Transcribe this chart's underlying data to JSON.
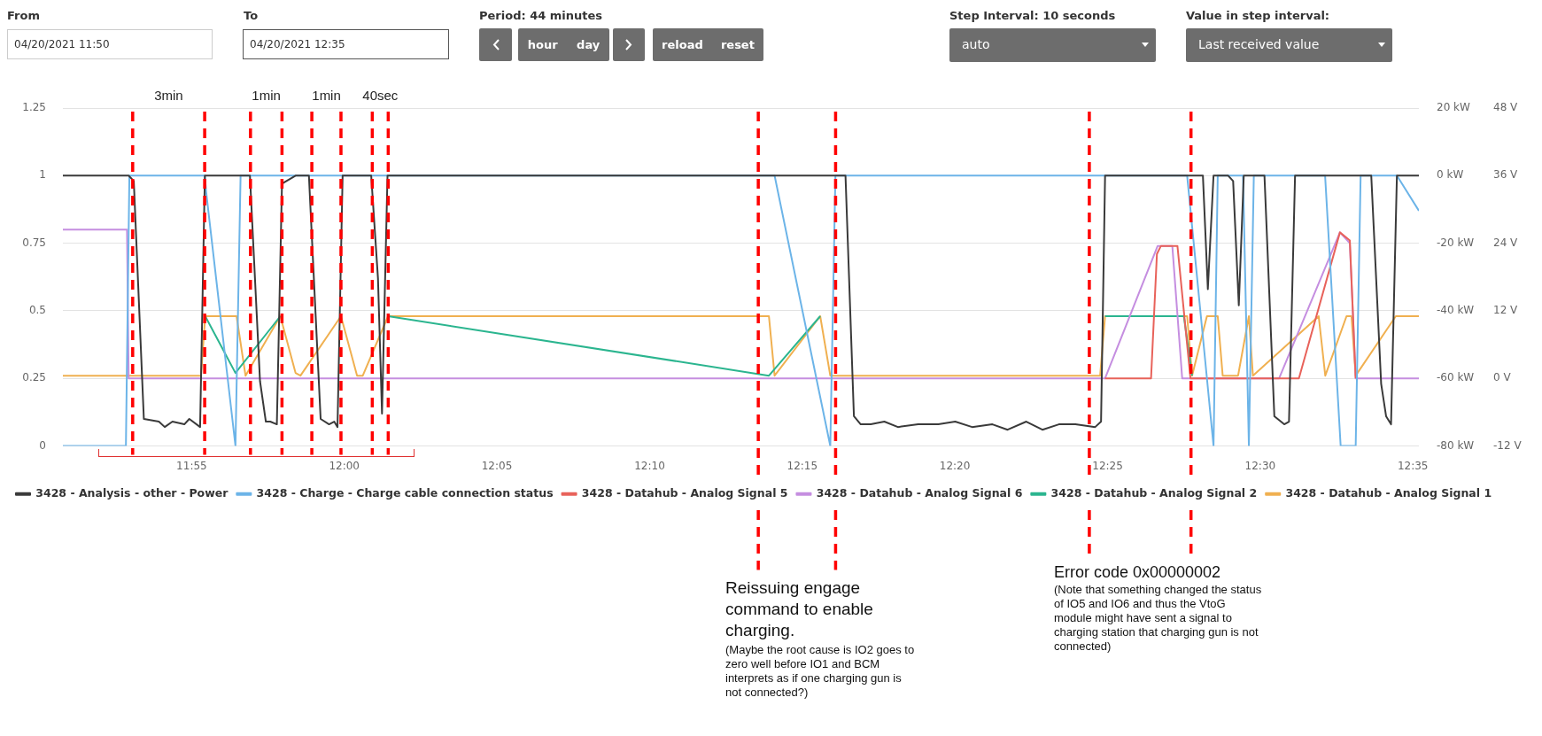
{
  "chart_data": {
    "type": "line",
    "xlim": [
      11.8464,
      12.5866
    ],
    "xticks": [
      {
        "value": 11.9167,
        "label": "11:55"
      },
      {
        "value": 12.0,
        "label": "12:00"
      },
      {
        "value": 12.0833,
        "label": "12:05"
      },
      {
        "value": 12.1667,
        "label": "12:10"
      },
      {
        "value": 12.25,
        "label": "12:15"
      },
      {
        "value": 12.3333,
        "label": "12:20"
      },
      {
        "value": 12.4167,
        "label": "12:25"
      },
      {
        "value": 12.5,
        "label": "12:30"
      },
      {
        "value": 12.5833,
        "label": "12:35"
      }
    ],
    "ylim": [
      0,
      1.25
    ],
    "yticks": [
      0,
      0.25,
      0.5,
      0.75,
      1,
      1.25
    ],
    "y2lim": [
      -80,
      20
    ],
    "y2ticks": [
      {
        "value": -80,
        "label": "-80 kW"
      },
      {
        "value": -60,
        "label": "-60 kW"
      },
      {
        "value": -40,
        "label": "-40 kW"
      },
      {
        "value": -20,
        "label": "-20 kW"
      },
      {
        "value": 0,
        "label": "0 kW"
      },
      {
        "value": 20,
        "label": "20 kW"
      }
    ],
    "y3lim": [
      -12,
      48
    ],
    "y3ticks": [
      {
        "value": -12,
        "label": "-12 V"
      },
      {
        "value": 0,
        "label": "0 V"
      },
      {
        "value": 12,
        "label": "12 V"
      },
      {
        "value": 24,
        "label": "24 V"
      },
      {
        "value": 36,
        "label": "36 V"
      },
      {
        "value": 48,
        "label": "48 V"
      }
    ],
    "grid": "y",
    "legend": "bottom left",
    "marker": "none",
    "line_style": "solid",
    "series": [
      {
        "name": "3428 - Analysis - other - Power",
        "color": "#3a3a3a",
        "x": [
          11.8464,
          11.8823,
          11.8851,
          11.8906,
          11.8988,
          11.902,
          11.9062,
          11.9127,
          11.9154,
          11.9213,
          11.9239,
          11.9412,
          11.9485,
          11.954,
          11.9572,
          11.9596,
          11.9632,
          11.966,
          11.9734,
          11.9761,
          11.9807,
          11.9871,
          11.9917,
          11.9945,
          11.9963,
          11.9991,
          12.0147,
          12.0184,
          12.0206,
          12.0236,
          12.2736,
          12.2782,
          12.2819,
          12.2874,
          12.2948,
          12.3022,
          12.3133,
          12.3243,
          12.3335,
          12.3427,
          12.3538,
          12.3621,
          12.3723,
          12.3811,
          12.3901,
          12.3991,
          12.4099,
          12.4131,
          12.4153,
          12.4619,
          12.4687,
          12.4714,
          12.4745,
          12.4825,
          12.4852,
          12.4883,
          12.491,
          12.5023,
          12.5077,
          12.5131,
          12.5157,
          12.519,
          12.5606,
          12.566,
          12.5687,
          12.5714,
          12.5746,
          12.5866
        ],
        "values": [
          1,
          1,
          0.98,
          0.1,
          0.09,
          0.07,
          0.09,
          0.08,
          0.1,
          0.07,
          1,
          1,
          1,
          0.24,
          0.09,
          0.09,
          0.08,
          0.97,
          1,
          1,
          1,
          0.1,
          0.08,
          0.09,
          0.07,
          1,
          1,
          0.62,
          0.12,
          1,
          1,
          0.11,
          0.08,
          0.08,
          0.09,
          0.07,
          0.08,
          0.08,
          0.09,
          0.07,
          0.08,
          0.06,
          0.09,
          0.06,
          0.08,
          0.08,
          0.07,
          0.09,
          1,
          1,
          1,
          0.58,
          1,
          1,
          0.98,
          0.52,
          1,
          1,
          0.11,
          0.08,
          0.09,
          1,
          1,
          0.23,
          0.11,
          0.08,
          1,
          1
        ]
      },
      {
        "name": "3428 - Charge - Charge cable connection status",
        "color": "#6cb4e8",
        "x": [
          11.8464,
          11.8808,
          11.8827,
          11.9239,
          11.9246,
          11.9406,
          11.9434,
          12.2349,
          12.2653,
          12.2681,
          12.4601,
          12.4745,
          12.4768,
          12.4906,
          12.4938,
          12.4965,
          12.5354,
          12.5439,
          12.5521,
          12.5548,
          12.5746,
          12.5866
        ],
        "values": [
          0,
          0,
          1,
          1,
          0.94,
          0,
          1,
          1,
          0,
          1,
          1,
          0,
          1,
          1,
          0,
          1,
          1,
          0,
          0,
          1,
          1,
          0.87
        ]
      },
      {
        "name": "3428 - Datahub - Analog Signal 5",
        "color": "#e8625a",
        "x": [
          12.4153,
          12.4404,
          12.4436,
          12.4458,
          12.4548,
          12.4619,
          12.5211,
          12.5435,
          12.5489,
          12.5521
        ],
        "values": [
          0.25,
          0.25,
          0.71,
          0.74,
          0.74,
          0.25,
          0.25,
          0.79,
          0.76,
          0.25
        ]
      },
      {
        "name": "3428 - Datahub - Analog Signal 6",
        "color": "#c58ee0",
        "x": [
          11.8464,
          11.8814,
          11.8823,
          12.4153,
          12.444,
          12.452,
          12.4574,
          12.5103,
          12.5435,
          12.5489,
          12.5521,
          12.5866
        ],
        "values": [
          0.8,
          0.8,
          0.25,
          0.25,
          0.74,
          0.74,
          0.25,
          0.25,
          0.79,
          0.75,
          0.25,
          0.25
        ]
      },
      {
        "name": "3428 - Datahub - Analog Signal 2",
        "color": "#2bb58f",
        "x": [
          11.9241,
          11.9406,
          11.9651,
          11.99,
          12.0239,
          12.2318,
          12.2598,
          12.33,
          12.4153,
          12.4583,
          12.4628
        ],
        "values": [
          0.48,
          0.27,
          0.48,
          null,
          0.48,
          0.26,
          0.48,
          null,
          0.48,
          0.48,
          0.26
        ]
      },
      {
        "name": "3428 - Datahub - Analog Signal 1",
        "color": "#f0b050",
        "x": [
          11.8464,
          11.9218,
          11.9241,
          11.9412,
          11.9461,
          11.9651,
          11.9734,
          11.9761,
          11.9982,
          12.007,
          12.0101,
          12.0239,
          12.2318,
          12.2349,
          12.2598,
          12.2653,
          12.4126,
          12.4153,
          12.4601,
          12.4628,
          12.4709,
          12.4768,
          12.4795,
          12.4879,
          12.4938,
          12.496,
          12.5319,
          12.5355,
          12.5471,
          12.5498,
          12.5521,
          12.574,
          12.5866
        ],
        "values": [
          0.26,
          0.26,
          0.48,
          0.48,
          0.26,
          0.48,
          0.27,
          0.26,
          0.48,
          0.26,
          0.26,
          0.48,
          0.48,
          0.26,
          0.48,
          0.26,
          0.26,
          0.48,
          0.48,
          0.26,
          0.48,
          0.48,
          0.26,
          0.26,
          0.48,
          0.26,
          0.48,
          0.26,
          0.48,
          0.48,
          0.26,
          0.48,
          0.48
        ]
      }
    ],
    "ref_lines": [
      {
        "axis": "x",
        "value": 11.8845,
        "color": "#ff0000",
        "line_style": "dashed"
      },
      {
        "axis": "x",
        "value": 11.9238,
        "color": "#ff0000",
        "line_style": "dashed"
      },
      {
        "axis": "x",
        "value": 11.9488,
        "color": "#ff0000",
        "line_style": "dashed"
      },
      {
        "axis": "x",
        "value": 11.966,
        "color": "#ff0000",
        "line_style": "dashed"
      },
      {
        "axis": "x",
        "value": 11.9823,
        "color": "#ff0000",
        "line_style": "dashed"
      },
      {
        "axis": "x",
        "value": 11.9982,
        "color": "#ff0000",
        "line_style": "dashed"
      },
      {
        "axis": "x",
        "value": 12.0153,
        "color": "#ff0000",
        "line_style": "dashed"
      },
      {
        "axis": "x",
        "value": 12.024,
        "color": "#ff0000",
        "line_style": "dashed"
      },
      {
        "axis": "x",
        "value": 12.226,
        "color": "#ff0000",
        "line_style": "dashed"
      },
      {
        "axis": "x",
        "value": 12.2682,
        "color": "#ff0000",
        "line_style": "dashed"
      },
      {
        "axis": "x",
        "value": 12.4067,
        "color": "#ff0000",
        "line_style": "dashed"
      },
      {
        "axis": "x",
        "value": 12.4622,
        "color": "#ff0000",
        "line_style": "dashed"
      }
    ],
    "annotations": [
      "From",
      "04/20/2021 11:50",
      "To",
      "04/20/2021 12:35",
      "Period: 44 minutes",
      "hour",
      "day",
      "reload",
      "reset",
      "Step Interval: 10 seconds",
      "auto",
      "Value in step interval:",
      "Last received value",
      "3min",
      "1min",
      "1min",
      "40sec",
      "Reissuing engage command to enable charging.",
      "(Maybe the root cause is IO2 goes to zero well before IO1 and BCM interprets as if one charging gun is not connected?)",
      "Error code 0x00000002",
      "(Note that something changed the status of IO5 and IO6 and thus the VtoG module might have sent a signal to charging station that charging gun is not connected)"
    ]
  }
}
